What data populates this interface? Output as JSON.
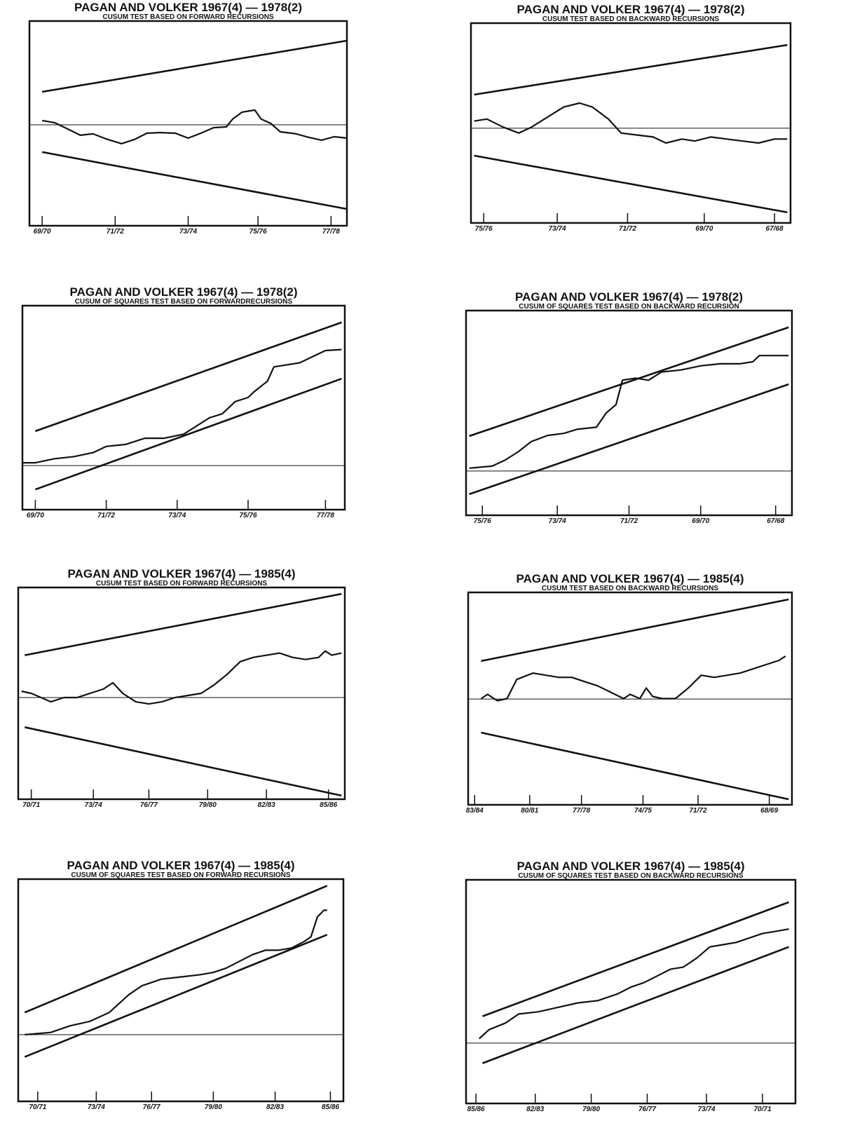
{
  "chart_data": [
    {
      "type": "line",
      "title": "PAGAN AND VOLKER 1967(4) — 1978(2)",
      "subtitle": "CUSUM TEST BASED ON FORWARD RECURSIONS",
      "xlim": [
        0,
        100
      ],
      "ylim": [
        0,
        100
      ],
      "xticks": [
        {
          "value": 4,
          "label": "69/70"
        },
        {
          "value": 27,
          "label": "71/72"
        },
        {
          "value": 50,
          "label": "73/74"
        },
        {
          "value": 72,
          "label": "75/76"
        },
        {
          "value": 95,
          "label": "77/78"
        }
      ],
      "series": [
        {
          "color": "#111",
          "width": 2.2,
          "x": [
            4,
            8,
            12,
            16,
            20,
            24,
            29,
            33,
            37,
            41,
            46,
            50,
            54,
            58,
            62,
            64,
            67,
            71,
            73,
            76,
            79,
            84,
            88,
            92,
            96,
            100
          ],
          "values": [
            51.4,
            50.3,
            47.3,
            44.2,
            44.9,
            42.5,
            40.1,
            42.1,
            45.2,
            45.5,
            45.2,
            42.8,
            45.2,
            47.9,
            48.3,
            52.1,
            55.5,
            56.5,
            52.1,
            50,
            45.9,
            44.9,
            43.2,
            41.8,
            43.5,
            42.8
          ]
        },
        {
          "color": "#111",
          "width": 2.6,
          "x": [
            4,
            100
          ],
          "values": [
            65.4,
            90.4
          ]
        },
        {
          "color": "#111",
          "width": 2.6,
          "x": [
            4,
            100
          ],
          "values": [
            36,
            8.2
          ]
        },
        {
          "color": "#111",
          "width": 1,
          "x": [
            0,
            100
          ],
          "values": [
            49.3,
            49.3
          ]
        }
      ]
    },
    {
      "type": "line",
      "title": "PAGAN AND VOLKER 1967(4) — 1978(2)",
      "subtitle": "CUSUM TEST BASED ON BACKWARD RECURSIONS",
      "xlim": [
        0,
        100
      ],
      "ylim": [
        0,
        100
      ],
      "xticks": [
        {
          "value": 4,
          "label": "75/76"
        },
        {
          "value": 27,
          "label": "73/74"
        },
        {
          "value": 49,
          "label": "71/72"
        },
        {
          "value": 73,
          "label": "69/70"
        },
        {
          "value": 95,
          "label": "67/68"
        }
      ],
      "series": [
        {
          "color": "#111",
          "width": 2.2,
          "x": [
            1,
            5,
            10,
            15,
            19,
            24,
            29,
            34,
            38,
            43,
            47,
            52,
            57,
            61,
            66,
            70,
            75,
            80,
            85,
            90,
            95,
            99
          ],
          "values": [
            51,
            52,
            48,
            45,
            48,
            53,
            58,
            60,
            58,
            52,
            45,
            44,
            43,
            40,
            42,
            41,
            43,
            42,
            41,
            40,
            42,
            42
          ]
        },
        {
          "color": "#111",
          "width": 2.6,
          "x": [
            1,
            99
          ],
          "values": [
            64.2,
            89.1
          ]
        },
        {
          "color": "#111",
          "width": 2.6,
          "x": [
            1,
            99
          ],
          "values": [
            33.7,
            5.3
          ]
        },
        {
          "color": "#111",
          "width": 1,
          "x": [
            0,
            100
          ],
          "values": [
            47.4,
            47.4
          ]
        }
      ]
    },
    {
      "type": "line",
      "title": "PAGAN AND VOLKER 1967(4) — 1978(2)",
      "subtitle": "CUSUM OF SQUARES TEST BASED ON FORWARDRECURSIONS",
      "xlim": [
        0,
        100
      ],
      "ylim": [
        0,
        100
      ],
      "xticks": [
        {
          "value": 4,
          "label": "69/70"
        },
        {
          "value": 26,
          "label": "71/72"
        },
        {
          "value": 48,
          "label": "73/74"
        },
        {
          "value": 70,
          "label": "75/76"
        },
        {
          "value": 94,
          "label": "77/78"
        }
      ],
      "series": [
        {
          "color": "#111",
          "width": 2.2,
          "x": [
            0,
            4,
            10,
            16,
            22,
            26,
            32,
            38,
            44,
            50,
            54,
            58,
            62,
            66,
            70,
            72,
            76,
            78,
            82,
            86,
            90,
            94,
            99
          ],
          "values": [
            23,
            23,
            25,
            26,
            28,
            31,
            32,
            35,
            35,
            37,
            41,
            45,
            47,
            53,
            55,
            58,
            63,
            70,
            71,
            72,
            75,
            78,
            78.5
          ]
        },
        {
          "color": "#111",
          "width": 2.6,
          "x": [
            4,
            99
          ],
          "values": [
            38.5,
            91.8
          ]
        },
        {
          "color": "#111",
          "width": 2.6,
          "x": [
            4,
            99
          ],
          "values": [
            9.9,
            64.2
          ]
        },
        {
          "color": "#111",
          "width": 1,
          "x": [
            0,
            100
          ],
          "values": [
            21.6,
            21.6
          ]
        }
      ]
    },
    {
      "type": "line",
      "title": "PAGAN AND VOLKER 1967(4) — 1978(2)",
      "subtitle": "CUSUM OF SQUARES TEST BASED ON BACKWARD RECURSION",
      "xlim": [
        0,
        100
      ],
      "ylim": [
        0,
        100
      ],
      "xticks": [
        {
          "value": 5,
          "label": "75/76"
        },
        {
          "value": 28,
          "label": "73/74"
        },
        {
          "value": 50,
          "label": "71/72"
        },
        {
          "value": 72,
          "label": "69/70"
        },
        {
          "value": 95,
          "label": "67/68"
        }
      ],
      "series": [
        {
          "color": "#111",
          "width": 2.2,
          "x": [
            1,
            8,
            12,
            16,
            20,
            25,
            30,
            34,
            40,
            43,
            46,
            48,
            52,
            56,
            60,
            66,
            72,
            78,
            84,
            88,
            90,
            99
          ],
          "values": [
            23,
            24,
            27,
            31,
            36,
            39,
            40,
            42,
            43,
            50,
            54,
            66,
            67,
            66,
            70,
            71,
            73,
            74,
            74,
            75,
            78,
            78
          ]
        },
        {
          "color": "#111",
          "width": 2.6,
          "x": [
            1,
            99
          ],
          "values": [
            38.7,
            91.8
          ]
        },
        {
          "color": "#111",
          "width": 2.6,
          "x": [
            1,
            99
          ],
          "values": [
            10.3,
            64
          ]
        },
        {
          "color": "#111",
          "width": 1,
          "x": [
            0,
            100
          ],
          "values": [
            21.6,
            21.6
          ]
        }
      ]
    },
    {
      "type": "line",
      "title": "PAGAN AND VOLKER 1967(4) — 1985(4)",
      "subtitle": "CUSUM TEST BASED ON FORWARD RECURSIONS",
      "xlim": [
        0,
        100
      ],
      "ylim": [
        0,
        100
      ],
      "xticks": [
        {
          "value": 4,
          "label": "70/71"
        },
        {
          "value": 23,
          "label": "73/74"
        },
        {
          "value": 40,
          "label": "76/77"
        },
        {
          "value": 58,
          "label": "79/80"
        },
        {
          "value": 76,
          "label": "82/83"
        },
        {
          "value": 95,
          "label": "85/86"
        }
      ],
      "series": [
        {
          "color": "#111",
          "width": 2.2,
          "x": [
            1,
            4,
            7,
            10,
            14,
            18,
            22,
            26,
            29,
            32,
            36,
            40,
            44,
            48,
            52,
            56,
            60,
            64,
            68,
            72,
            76,
            80,
            84,
            88,
            92,
            94,
            96,
            99
          ],
          "values": [
            51,
            50,
            48,
            46,
            48,
            48,
            50,
            52,
            55,
            50,
            46,
            45,
            46,
            48,
            49,
            50,
            54,
            59,
            65,
            67,
            68,
            69,
            67,
            66,
            67,
            70,
            68,
            69
          ]
        },
        {
          "color": "#111",
          "width": 2.6,
          "x": [
            2,
            99
          ],
          "values": [
            68,
            97
          ]
        },
        {
          "color": "#111",
          "width": 2.6,
          "x": [
            2,
            99
          ],
          "values": [
            34,
            1.7
          ]
        },
        {
          "color": "#111",
          "width": 1,
          "x": [
            0,
            100
          ],
          "values": [
            48,
            48
          ]
        }
      ]
    },
    {
      "type": "line",
      "title": "PAGAN AND VOLKER 1967(4) — 1985(4)",
      "subtitle": "CUSUM TEST BASED ON BACKWARD RECURSIONS",
      "xlim": [
        0,
        100
      ],
      "ylim": [
        0,
        100
      ],
      "xticks": [
        {
          "value": 2,
          "label": "83/84"
        },
        {
          "value": 19,
          "label": "80/81"
        },
        {
          "value": 35,
          "label": "77/78"
        },
        {
          "value": 54,
          "label": "74/75"
        },
        {
          "value": 71,
          "label": "71/72"
        },
        {
          "value": 93,
          "label": "68/69"
        }
      ],
      "series": [
        {
          "color": "#111",
          "width": 2.2,
          "x": [
            4,
            6,
            9,
            12,
            15,
            20,
            24,
            28,
            32,
            36,
            40,
            44,
            48,
            50,
            53,
            55,
            57,
            60,
            64,
            68,
            72,
            76,
            80,
            84,
            88,
            92,
            96,
            98
          ],
          "values": [
            50,
            52,
            49,
            50,
            59,
            62,
            61,
            60,
            60,
            58,
            56,
            53,
            50,
            52,
            50,
            55,
            51,
            50,
            50,
            55,
            61,
            60,
            61,
            62,
            64,
            66,
            68,
            70
          ]
        },
        {
          "color": "#111",
          "width": 2.6,
          "x": [
            4,
            99
          ],
          "values": [
            67.7,
            96.7
          ]
        },
        {
          "color": "#111",
          "width": 2.6,
          "x": [
            4,
            99
          ],
          "values": [
            34,
            2.6
          ]
        },
        {
          "color": "#111",
          "width": 1,
          "x": [
            0,
            100
          ],
          "values": [
            49.8,
            49.8
          ]
        }
      ]
    },
    {
      "type": "line",
      "title": "PAGAN AND VOLKER 1967(4) — 1985(4)",
      "subtitle": "CUSUM OF SQUARES TEST BASED ON FORWARD RECURSIONS",
      "xlim": [
        0,
        100
      ],
      "ylim": [
        0,
        100
      ],
      "xticks": [
        {
          "value": 6,
          "label": "70/71"
        },
        {
          "value": 24,
          "label": "73/74"
        },
        {
          "value": 41,
          "label": "76/77"
        },
        {
          "value": 60,
          "label": "79/80"
        },
        {
          "value": 79,
          "label": "82/83"
        },
        {
          "value": 96,
          "label": "85/86"
        }
      ],
      "series": [
        {
          "color": "#111",
          "width": 2.2,
          "x": [
            2,
            10,
            16,
            22,
            28,
            34,
            38,
            44,
            50,
            56,
            60,
            64,
            68,
            72,
            76,
            80,
            84,
            88,
            90,
            92,
            94,
            95
          ],
          "values": [
            30,
            31,
            34,
            36,
            40,
            48,
            52,
            55,
            56,
            57,
            58,
            60,
            63,
            66,
            68,
            68,
            69,
            72,
            74,
            83,
            86,
            86
          ]
        },
        {
          "color": "#111",
          "width": 2.6,
          "x": [
            2,
            95
          ],
          "values": [
            40,
            97
          ]
        },
        {
          "color": "#111",
          "width": 2.6,
          "x": [
            2,
            95
          ],
          "values": [
            20,
            75
          ]
        },
        {
          "color": "#111",
          "width": 1,
          "x": [
            0,
            100
          ],
          "values": [
            30,
            30
          ]
        }
      ]
    },
    {
      "type": "line",
      "title": "PAGAN AND VOLKER 1967(4) — 1985(4)",
      "subtitle": "CUSUM OF SQUARES TEST BASED ON BACKWARD RECURSIONS",
      "xlim": [
        0,
        100
      ],
      "ylim": [
        0,
        100
      ],
      "xticks": [
        {
          "value": 3,
          "label": "85/86"
        },
        {
          "value": 21,
          "label": "82/83"
        },
        {
          "value": 38,
          "label": "79/80"
        },
        {
          "value": 55,
          "label": "76/77"
        },
        {
          "value": 73,
          "label": "73/74"
        },
        {
          "value": 90,
          "label": "70/71"
        }
      ],
      "series": [
        {
          "color": "#111",
          "width": 2.2,
          "x": [
            4,
            7,
            12,
            16,
            22,
            28,
            34,
            40,
            46,
            50,
            54,
            58,
            62,
            66,
            70,
            74,
            78,
            82,
            86,
            90,
            94,
            98
          ],
          "values": [
            29,
            33,
            36,
            40,
            41,
            43,
            45,
            46,
            49,
            52,
            54,
            57,
            60,
            61,
            65,
            70,
            71,
            72,
            74,
            76,
            77,
            78
          ]
        },
        {
          "color": "#111",
          "width": 2.6,
          "x": [
            5,
            98
          ],
          "values": [
            39,
            90
          ]
        },
        {
          "color": "#111",
          "width": 2.6,
          "x": [
            5,
            98
          ],
          "values": [
            18,
            70
          ]
        },
        {
          "color": "#111",
          "width": 1,
          "x": [
            0,
            100
          ],
          "values": [
            27,
            27
          ]
        }
      ]
    }
  ]
}
